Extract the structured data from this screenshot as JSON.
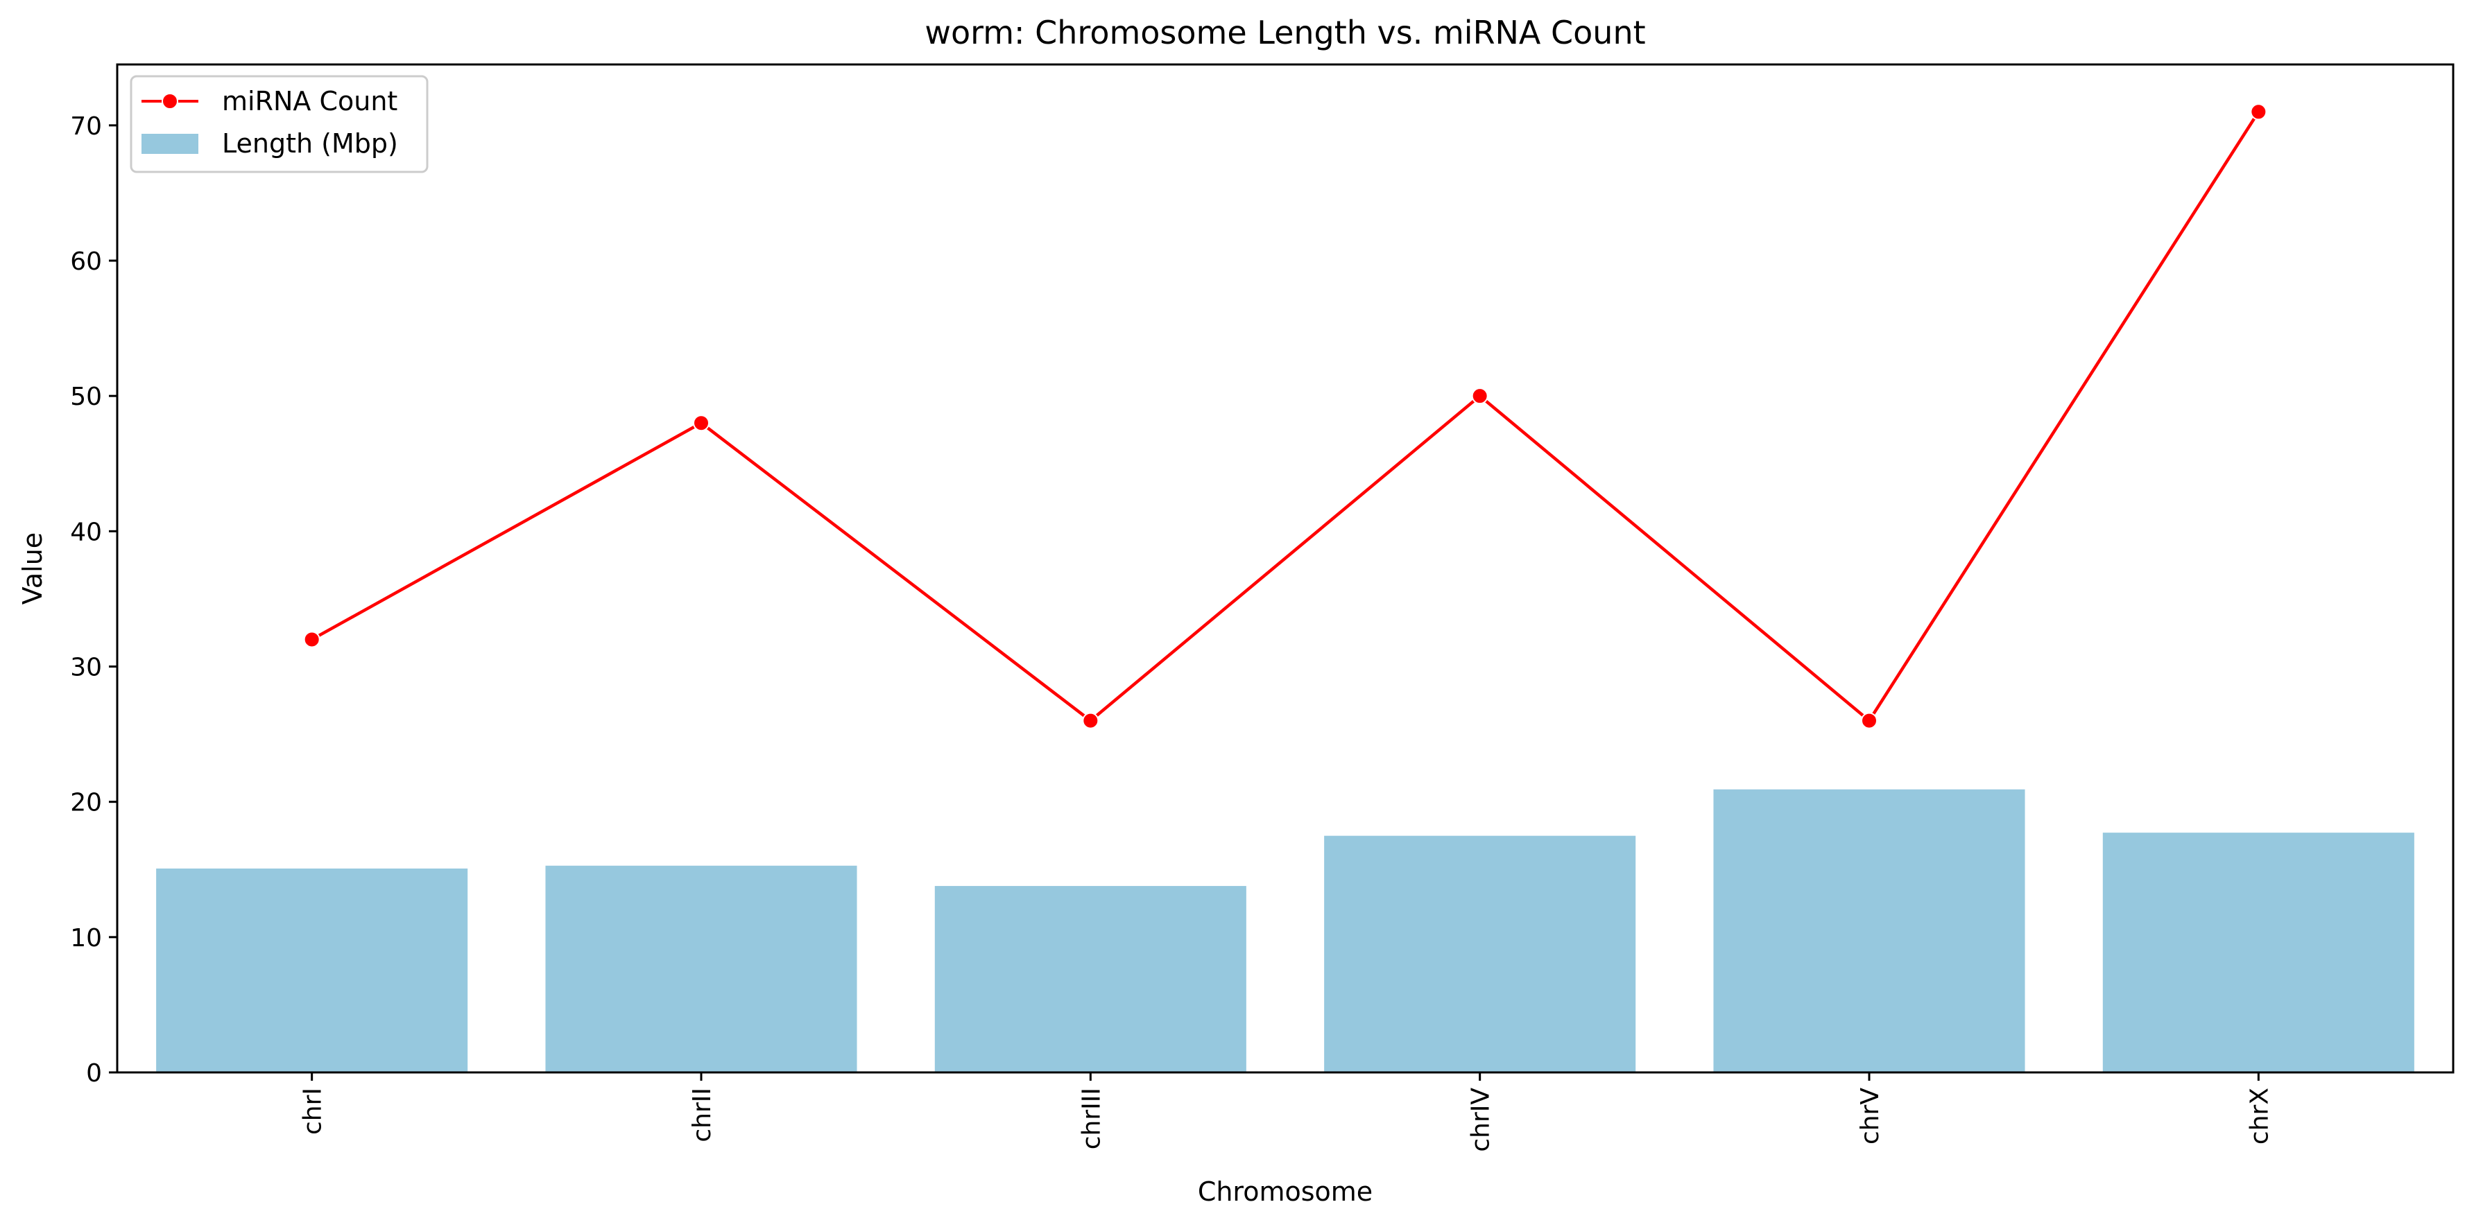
{
  "chart_data": {
    "type": "bar",
    "title": "worm: Chromosome Length vs. miRNA Count",
    "xlabel": "Chromosome",
    "ylabel": "Value",
    "ylim": [
      0,
      74.5
    ],
    "yticks": [
      0,
      10,
      20,
      30,
      40,
      50,
      60,
      70
    ],
    "categories": [
      "chrI",
      "chrII",
      "chrIII",
      "chrIV",
      "chrV",
      "chrX"
    ],
    "series": [
      {
        "name": "Length (Mbp)",
        "type": "bar",
        "color": "#96c8de",
        "values": [
          15.07,
          15.28,
          13.78,
          17.49,
          20.92,
          17.72
        ]
      },
      {
        "name": "miRNA Count",
        "type": "line",
        "marker": "circle",
        "color": "#ff0000",
        "values": [
          32,
          48,
          26,
          50,
          26,
          71
        ]
      }
    ],
    "legend": "top-left",
    "grid": false
  }
}
